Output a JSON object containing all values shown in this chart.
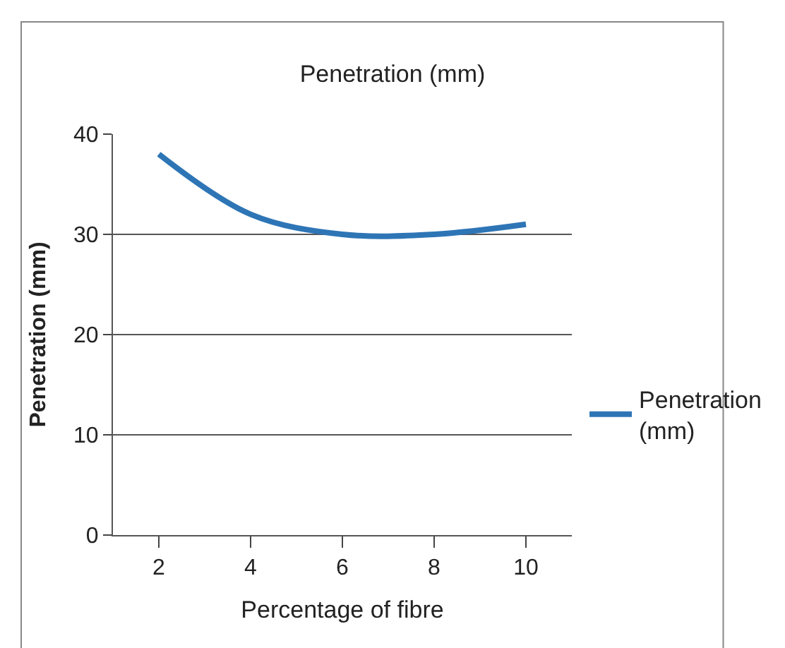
{
  "chart_data": {
    "type": "line",
    "title": "Penetration (mm)",
    "xlabel": "Percentage of fibre",
    "ylabel": "Penetration (mm)",
    "categories": [
      "2",
      "4",
      "6",
      "8",
      "10"
    ],
    "series": [
      {
        "name": "Penetration (mm)",
        "color": "#2e75b6",
        "values": [
          38,
          32,
          30,
          30,
          31
        ]
      }
    ],
    "ylim": [
      0,
      40
    ],
    "yticks": [
      0,
      10,
      20,
      30,
      40
    ],
    "grid": "y",
    "legend": "right",
    "marker": "none"
  }
}
